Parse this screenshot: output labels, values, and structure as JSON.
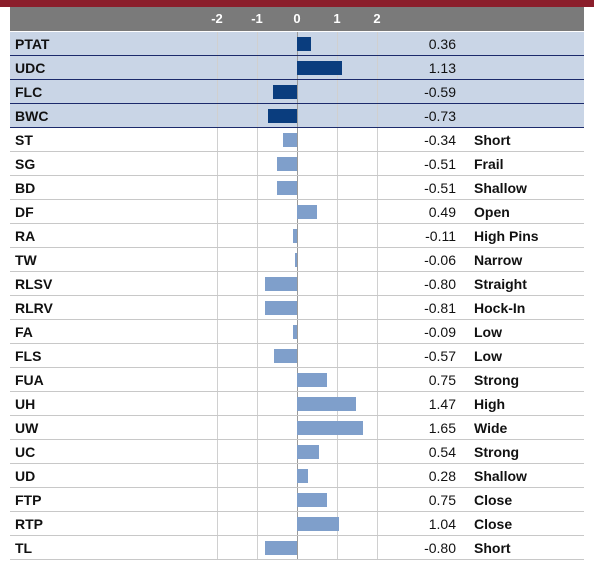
{
  "axis": {
    "ticks": [
      "-2",
      "-1",
      "0",
      "1",
      "2"
    ],
    "tick_values": [
      -2,
      -1,
      0,
      1,
      2
    ]
  },
  "colors": {
    "highlight_bar": "#0a3d7e",
    "normal_bar": "#7f9fcb",
    "header": "#7a7a7a",
    "top_band": "#8b1e2b",
    "highlight_row": "#c9d5e6"
  },
  "chart_data": {
    "type": "bar",
    "orientation": "horizontal",
    "xlim": [
      -2,
      2
    ],
    "grid": true,
    "categories": [
      "PTAT",
      "UDC",
      "FLC",
      "BWC",
      "ST",
      "SG",
      "BD",
      "DF",
      "RA",
      "TW",
      "RLSV",
      "RLRV",
      "FA",
      "FLS",
      "FUA",
      "UH",
      "UW",
      "UC",
      "UD",
      "FTP",
      "RTP",
      "TL"
    ],
    "values": [
      0.36,
      1.13,
      -0.59,
      -0.73,
      -0.34,
      -0.51,
      -0.51,
      0.49,
      -0.11,
      -0.06,
      -0.8,
      -0.81,
      -0.09,
      -0.57,
      0.75,
      1.47,
      1.65,
      0.54,
      0.28,
      0.75,
      1.04,
      -0.8
    ],
    "value_labels": [
      "0.36",
      "1.13",
      "-0.59",
      "-0.73",
      "-0.34",
      "-0.51",
      "-0.51",
      "0.49",
      "-0.11",
      "-0.06",
      "-0.80",
      "-0.81",
      "-0.09",
      "-0.57",
      "0.75",
      "1.47",
      "1.65",
      "0.54",
      "0.28",
      "0.75",
      "1.04",
      "-0.80"
    ],
    "descriptors": [
      "",
      "",
      "",
      "",
      "Short",
      "Frail",
      "Shallow",
      "Open",
      "High Pins",
      "Narrow",
      "Straight",
      "Hock-In",
      "Low",
      "Low",
      "Strong",
      "High",
      "Wide",
      "Strong",
      "Shallow",
      "Close",
      "Close",
      "Short"
    ],
    "highlighted": [
      true,
      true,
      true,
      true,
      false,
      false,
      false,
      false,
      false,
      false,
      false,
      false,
      false,
      false,
      false,
      false,
      false,
      false,
      false,
      false,
      false,
      false
    ]
  }
}
